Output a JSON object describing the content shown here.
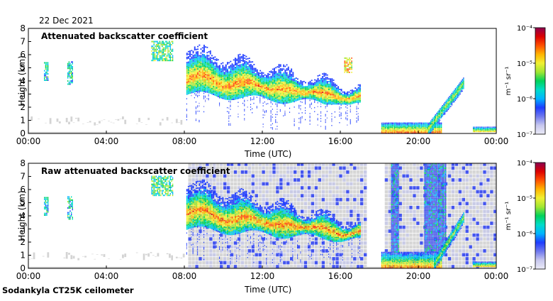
{
  "date": "22 Dec 2021",
  "footer": "Sodankyla CT25K ceilometer",
  "colors": {
    "clearsky_gray": "#d4d4d4",
    "noise_blue": "#4455ee",
    "colormap": [
      "#ebebf7",
      "#c8c8ee",
      "#6f78ee",
      "#1e3cff",
      "#00b4ff",
      "#00dcc8",
      "#00d25a",
      "#a0e632",
      "#f0f032",
      "#ffb400",
      "#ff5000",
      "#dc0000",
      "#8c0050"
    ]
  },
  "chart_data": [
    {
      "type": "heatmap",
      "title": "Attenuated backscatter coefficient",
      "xlabel": "Time (UTC)",
      "ylabel": "Height (km)",
      "xlim": [
        "00:00",
        "24:00"
      ],
      "ylim": [
        0,
        8
      ],
      "xticks": [
        "00:00",
        "04:00",
        "08:00",
        "12:00",
        "16:00",
        "20:00",
        "00:00"
      ],
      "yticks": [
        "0",
        "1",
        "2",
        "3",
        "4",
        "5",
        "6",
        "7",
        "8"
      ],
      "colorbar": {
        "label": "m⁻¹ sr⁻¹",
        "scale": "log",
        "range": [
          1e-07,
          0.0001
        ],
        "ticks": [
          "10⁻⁷",
          "10⁻⁶",
          "10⁻⁵",
          "10⁻⁴"
        ]
      },
      "noise_fill": false,
      "features": [
        {
          "kind": "patch",
          "t_start": 0.8,
          "t_end": 1.0,
          "h_low": 4.0,
          "h_high": 5.4,
          "level": 0.4
        },
        {
          "kind": "patch",
          "t_start": 2.0,
          "t_end": 2.3,
          "h_low": 3.7,
          "h_high": 5.4,
          "level": 0.42
        },
        {
          "kind": "patch",
          "t_start": 6.3,
          "t_end": 7.4,
          "h_low": 5.5,
          "h_high": 7.0,
          "level": 0.48
        },
        {
          "kind": "layer",
          "t_start": 8.1,
          "t_end": 17.0,
          "h_base": 2.2,
          "h_top": 6.5,
          "peak_level": 0.8
        },
        {
          "kind": "patch",
          "t_start": 16.2,
          "t_end": 16.6,
          "h_low": 4.6,
          "h_high": 5.8,
          "level": 0.7
        },
        {
          "kind": "surface",
          "t_start": 18.1,
          "t_end": 21.2,
          "h_low": 0.0,
          "h_high": 0.8,
          "level": 0.85
        },
        {
          "kind": "rise",
          "t_start": 20.5,
          "t_end": 22.3,
          "h_low": 0.3,
          "h_high": 3.8,
          "level": 0.6
        },
        {
          "kind": "surface",
          "t_start": 22.8,
          "t_end": 24.0,
          "h_low": 0.1,
          "h_high": 0.5,
          "level": 0.72
        }
      ]
    },
    {
      "type": "heatmap",
      "title": "Raw attenuated backscatter coefficient",
      "xlabel": "Time (UTC)",
      "ylabel": "Height (km)",
      "xlim": [
        "00:00",
        "24:00"
      ],
      "ylim": [
        0,
        8
      ],
      "xticks": [
        "00:00",
        "04:00",
        "08:00",
        "12:00",
        "16:00",
        "20:00",
        "00:00"
      ],
      "yticks": [
        "0",
        "1",
        "2",
        "3",
        "4",
        "5",
        "6",
        "7",
        "8"
      ],
      "colorbar": {
        "label": "m⁻¹ sr⁻¹",
        "scale": "log",
        "range": [
          1e-07,
          0.0001
        ],
        "ticks": [
          "10⁻⁷",
          "10⁻⁶",
          "10⁻⁵",
          "10⁻⁴"
        ]
      },
      "noise_fill": true,
      "features": [
        {
          "kind": "patch",
          "t_start": 0.8,
          "t_end": 1.0,
          "h_low": 4.0,
          "h_high": 5.4,
          "level": 0.4
        },
        {
          "kind": "patch",
          "t_start": 2.0,
          "t_end": 2.3,
          "h_low": 3.7,
          "h_high": 5.4,
          "level": 0.42
        },
        {
          "kind": "patch",
          "t_start": 6.3,
          "t_end": 7.4,
          "h_low": 5.5,
          "h_high": 7.0,
          "level": 0.48
        },
        {
          "kind": "layer",
          "t_start": 8.1,
          "t_end": 17.0,
          "h_base": 2.0,
          "h_top": 6.5,
          "peak_level": 0.8
        },
        {
          "kind": "surface",
          "t_start": 18.1,
          "t_end": 21.2,
          "h_low": 0.0,
          "h_high": 1.2,
          "level": 0.8
        },
        {
          "kind": "column",
          "t_start": 18.6,
          "t_end": 19.0,
          "h_low": 0.0,
          "h_high": 8.0,
          "level": 0.3
        },
        {
          "kind": "column",
          "t_start": 20.3,
          "t_end": 21.4,
          "h_low": 0.0,
          "h_high": 8.0,
          "level": 0.3
        },
        {
          "kind": "rise",
          "t_start": 20.8,
          "t_end": 22.3,
          "h_low": 0.3,
          "h_high": 3.8,
          "level": 0.6
        },
        {
          "kind": "surface",
          "t_start": 22.8,
          "t_end": 24.0,
          "h_low": 0.1,
          "h_high": 0.5,
          "level": 0.72
        }
      ]
    }
  ]
}
